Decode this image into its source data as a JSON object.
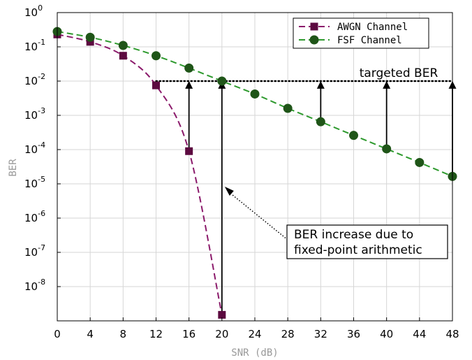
{
  "chart_data": {
    "type": "line",
    "xlabel": "SNR (dB)",
    "ylabel": "BER",
    "xlim": [
      0,
      48
    ],
    "ylim_log10": [
      -9,
      0
    ],
    "y_scale": "log",
    "x_ticks": [
      "0",
      "4",
      "8",
      "12",
      "16",
      "20",
      "24",
      "28",
      "32",
      "36",
      "40",
      "44",
      "48"
    ],
    "y_ticks": [
      {
        "base": "10",
        "exp": "0"
      },
      {
        "base": "10",
        "exp": "-1"
      },
      {
        "base": "10",
        "exp": "-2"
      },
      {
        "base": "10",
        "exp": "-3"
      },
      {
        "base": "10",
        "exp": "-4"
      },
      {
        "base": "10",
        "exp": "-5"
      },
      {
        "base": "10",
        "exp": "-6"
      },
      {
        "base": "10",
        "exp": "-7"
      },
      {
        "base": "10",
        "exp": "-8"
      }
    ],
    "grid": true,
    "legend_position": "top-right",
    "series": [
      {
        "name": "AWGN Channel",
        "color": "#8b1a6b",
        "line_style": "dashed",
        "marker": "square",
        "x": [
          0,
          4,
          8,
          12,
          16,
          20
        ],
        "y": [
          0.23,
          0.14,
          0.055,
          0.0075,
          9e-05,
          1.5e-09
        ]
      },
      {
        "name": "FSF Channel",
        "color": "#2e9a2e",
        "marker_color": "#1f5518",
        "line_style": "dashed",
        "marker": "circle",
        "x": [
          0,
          4,
          8,
          12,
          16,
          20,
          24,
          28,
          32,
          36,
          40,
          44,
          48
        ],
        "y": [
          0.28,
          0.19,
          0.11,
          0.055,
          0.024,
          0.01,
          0.0042,
          0.0016,
          0.00065,
          0.00026,
          0.000105,
          4.2e-05,
          1.65e-05
        ]
      }
    ],
    "target_line": {
      "label": "targeted BER",
      "y": 0.01
    },
    "arrows": [
      {
        "x": 16,
        "from": 9e-05,
        "to": 0.01
      },
      {
        "x": 20,
        "from": 1.5e-09,
        "to": 0.01
      },
      {
        "x": 32,
        "from": 0.00065,
        "to": 0.01
      },
      {
        "x": 40,
        "from": 0.000105,
        "to": 0.01
      },
      {
        "x": 48,
        "from": 1.65e-05,
        "to": 0.01
      }
    ],
    "annotation": {
      "lines": [
        "BER increase due to",
        "fixed-point arithmetic"
      ],
      "points_to": {
        "x": 20,
        "y": 1e-05
      }
    }
  }
}
